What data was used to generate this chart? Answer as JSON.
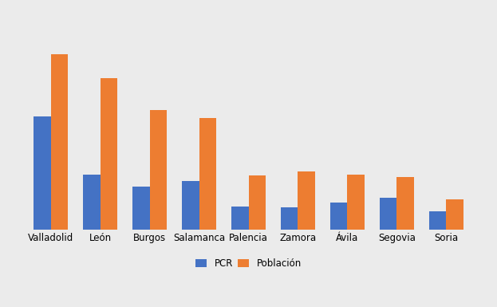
{
  "categories": [
    "Valladolid",
    "León",
    "Burgos",
    "Salamanca",
    "Palencia",
    "Zamora",
    "Ávila",
    "Segovia",
    "Soria"
  ],
  "pcr": [
    30124,
    14642,
    11498,
    12800,
    6100,
    5800,
    7200,
    8500,
    4900
  ],
  "poblacion": [
    524407,
    453137,
    357361,
    332642,
    160352,
    172153,
    162510,
    155503,
    88927
  ],
  "pcr_color": "#4472c4",
  "poblacion_color": "#ed7d31",
  "background_color": "#ebebeb",
  "legend_labels": [
    "PCR",
    "Población"
  ],
  "bar_width": 0.35,
  "pcr_ylim": [
    0,
    58000
  ],
  "pop_ylim": [
    0,
    650000
  ],
  "figsize": [
    6.23,
    3.85
  ],
  "dpi": 100,
  "grid_color": "#ffffff",
  "font_size": 8.5,
  "legend_fontsize": 8.5
}
